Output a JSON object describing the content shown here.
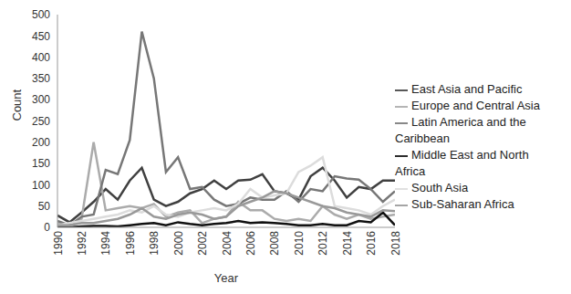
{
  "chart_data": {
    "type": "line",
    "x_label": "Year",
    "y_label": "Count",
    "x": [
      1990,
      1991,
      1992,
      1993,
      1994,
      1995,
      1996,
      1997,
      1998,
      1999,
      2000,
      2001,
      2002,
      2003,
      2004,
      2005,
      2006,
      2007,
      2008,
      2009,
      2010,
      2011,
      2012,
      2013,
      2014,
      2015,
      2016,
      2017,
      2018
    ],
    "xlim": [
      1990,
      2018
    ],
    "xticks": [
      1990,
      1992,
      1994,
      1996,
      1998,
      2000,
      2002,
      2004,
      2006,
      2008,
      2010,
      2012,
      2014,
      2016,
      2018
    ],
    "ylim": [
      0,
      500
    ],
    "yticks": [
      0,
      50,
      100,
      150,
      200,
      250,
      300,
      350,
      400,
      450,
      500
    ],
    "grid": false,
    "legend": "right",
    "series": [
      {
        "name": "East Asia and Pacific",
        "color": "#404040",
        "values": [
          28,
          12,
          35,
          60,
          90,
          65,
          110,
          140,
          65,
          50,
          60,
          80,
          90,
          110,
          90,
          110,
          112,
          125,
          85,
          80,
          65,
          120,
          140,
          110,
          70,
          95,
          90,
          110,
          110
        ]
      },
      {
        "name": "Europe and Central Asia",
        "color": "#ababab",
        "values": [
          10,
          5,
          20,
          200,
          40,
          45,
          50,
          45,
          55,
          25,
          35,
          40,
          10,
          20,
          25,
          60,
          40,
          40,
          20,
          15,
          20,
          15,
          50,
          30,
          20,
          30,
          20,
          25,
          30
        ]
      },
      {
        "name": "Latin America and the Caribbean",
        "color": "#777777",
        "values": [
          15,
          5,
          25,
          30,
          135,
          125,
          205,
          460,
          350,
          130,
          165,
          90,
          95,
          65,
          50,
          55,
          70,
          65,
          65,
          85,
          60,
          90,
          85,
          120,
          115,
          112,
          90,
          60,
          85
        ]
      },
      {
        "name": "Middle East and North Africa",
        "color": "#111111",
        "values": [
          0,
          0,
          2,
          3,
          3,
          2,
          5,
          8,
          10,
          5,
          12,
          8,
          5,
          8,
          10,
          15,
          10,
          12,
          10,
          8,
          5,
          5,
          8,
          5,
          5,
          15,
          12,
          35,
          5
        ]
      },
      {
        "name": "South Asia",
        "color": "#dcdcdc",
        "values": [
          5,
          10,
          15,
          20,
          25,
          30,
          40,
          35,
          50,
          30,
          25,
          35,
          40,
          45,
          40,
          55,
          90,
          70,
          75,
          80,
          130,
          145,
          165,
          50,
          45,
          40,
          30,
          50,
          65
        ]
      },
      {
        "name": "Sub-Saharan Africa",
        "color": "#999999",
        "values": [
          5,
          5,
          10,
          10,
          15,
          20,
          30,
          45,
          25,
          20,
          30,
          35,
          30,
          20,
          25,
          50,
          60,
          70,
          85,
          80,
          70,
          60,
          50,
          45,
          35,
          30,
          25,
          40,
          38
        ]
      }
    ]
  }
}
